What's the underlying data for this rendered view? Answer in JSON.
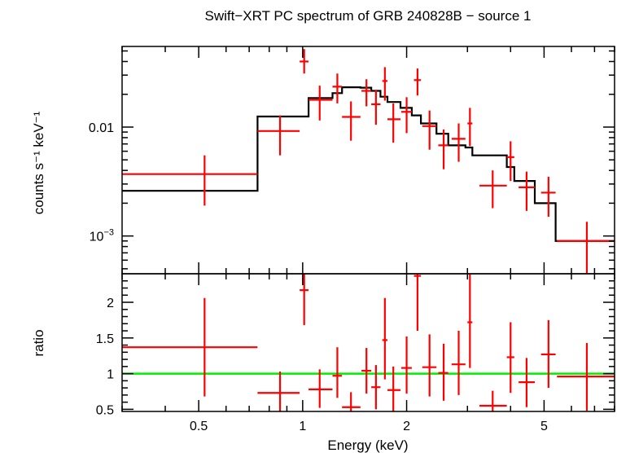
{
  "chart_data": {
    "type": "scatter",
    "title": "Swift−XRT PC spectrum of GRB 240828B − source 1",
    "xlabel": "Energy (keV)",
    "xscale": "log",
    "xlim": [
      0.3,
      8
    ],
    "x_ticks": [
      {
        "v": 0.5,
        "label": "0.5"
      },
      {
        "v": 1,
        "label": "1"
      },
      {
        "v": 2,
        "label": "2"
      },
      {
        "v": 5,
        "label": "5"
      }
    ],
    "top_panel": {
      "ylabel": "counts s⁻¹ keV⁻¹",
      "yscale": "log",
      "ylim": [
        0.00045,
        0.055
      ],
      "y_ticks": [
        {
          "v": 0.01,
          "label": "0.01",
          "sup": ""
        },
        {
          "v": 0.001,
          "label": "10",
          "sup": "−3"
        }
      ],
      "data": [
        {
          "x": 0.52,
          "xlo": 0.3,
          "xhi": 0.74,
          "y": 0.0037,
          "ylo": 0.0019,
          "yhi": 0.0055
        },
        {
          "x": 0.86,
          "xlo": 0.74,
          "xhi": 0.98,
          "y": 0.0092,
          "ylo": 0.0055,
          "yhi": 0.0128
        },
        {
          "x": 1.01,
          "xlo": 0.98,
          "xhi": 1.04,
          "y": 0.04,
          "ylo": 0.031,
          "yhi": 0.052
        },
        {
          "x": 1.12,
          "xlo": 1.04,
          "xhi": 1.22,
          "y": 0.0178,
          "ylo": 0.0115,
          "yhi": 0.024
        },
        {
          "x": 1.26,
          "xlo": 1.22,
          "xhi": 1.3,
          "y": 0.0235,
          "ylo": 0.0165,
          "yhi": 0.031
        },
        {
          "x": 1.38,
          "xlo": 1.3,
          "xhi": 1.47,
          "y": 0.0124,
          "ylo": 0.0075,
          "yhi": 0.0172
        },
        {
          "x": 1.53,
          "xlo": 1.48,
          "xhi": 1.58,
          "y": 0.0215,
          "ylo": 0.0155,
          "yhi": 0.0275
        },
        {
          "x": 1.63,
          "xlo": 1.58,
          "xhi": 1.68,
          "y": 0.0162,
          "ylo": 0.0105,
          "yhi": 0.022
        },
        {
          "x": 1.73,
          "xlo": 1.7,
          "xhi": 1.76,
          "y": 0.0265,
          "ylo": 0.0175,
          "yhi": 0.0355
        },
        {
          "x": 1.83,
          "xlo": 1.76,
          "xhi": 1.92,
          "y": 0.0118,
          "ylo": 0.0072,
          "yhi": 0.0165
        },
        {
          "x": 2.0,
          "xlo": 1.93,
          "xhi": 2.07,
          "y": 0.0138,
          "ylo": 0.0088,
          "yhi": 0.0188
        },
        {
          "x": 2.15,
          "xlo": 2.1,
          "xhi": 2.2,
          "y": 0.027,
          "ylo": 0.0195,
          "yhi": 0.0345
        },
        {
          "x": 2.33,
          "xlo": 2.22,
          "xhi": 2.44,
          "y": 0.0102,
          "ylo": 0.0062,
          "yhi": 0.0142
        },
        {
          "x": 2.56,
          "xlo": 2.47,
          "xhi": 2.64,
          "y": 0.0068,
          "ylo": 0.0041,
          "yhi": 0.0095
        },
        {
          "x": 2.83,
          "xlo": 2.7,
          "xhi": 2.96,
          "y": 0.0078,
          "ylo": 0.0048,
          "yhi": 0.0108
        },
        {
          "x": 3.05,
          "xlo": 3.0,
          "xhi": 3.1,
          "y": 0.0108,
          "ylo": 0.0067,
          "yhi": 0.015
        },
        {
          "x": 3.55,
          "xlo": 3.25,
          "xhi": 3.9,
          "y": 0.0029,
          "ylo": 0.0018,
          "yhi": 0.004
        },
        {
          "x": 4.0,
          "xlo": 3.9,
          "xhi": 4.1,
          "y": 0.0053,
          "ylo": 0.0032,
          "yhi": 0.0074
        },
        {
          "x": 4.45,
          "xlo": 4.22,
          "xhi": 4.7,
          "y": 0.0028,
          "ylo": 0.0017,
          "yhi": 0.0039
        },
        {
          "x": 5.15,
          "xlo": 4.9,
          "xhi": 5.4,
          "y": 0.0025,
          "ylo": 0.0015,
          "yhi": 0.0035
        },
        {
          "x": 6.65,
          "xlo": 5.45,
          "xhi": 8.0,
          "y": 0.0009,
          "ylo": 0.00045,
          "yhi": 0.00135
        }
      ],
      "model_step": {
        "edges": [
          0.3,
          0.74,
          0.98,
          1.04,
          1.22,
          1.3,
          1.47,
          1.58,
          1.68,
          1.76,
          1.92,
          2.07,
          2.2,
          2.44,
          2.64,
          2.96,
          3.1,
          3.9,
          4.1,
          4.7,
          5.4,
          8.0
        ],
        "values": [
          0.0026,
          0.0125,
          0.0125,
          0.0185,
          0.0205,
          0.0232,
          0.023,
          0.0215,
          0.019,
          0.017,
          0.015,
          0.0128,
          0.0108,
          0.0087,
          0.0068,
          0.0065,
          0.0055,
          0.0043,
          0.0032,
          0.002,
          0.0009
        ]
      }
    },
    "bottom_panel": {
      "ylabel": "ratio",
      "yscale": "linear",
      "ylim": [
        0.47,
        2.4
      ],
      "y_ticks": [
        {
          "v": 0.5,
          "label": "0.5"
        },
        {
          "v": 1,
          "label": "1"
        },
        {
          "v": 1.5,
          "label": "1.5"
        },
        {
          "v": 2,
          "label": "2"
        }
      ],
      "reference_line": 1,
      "reference_color": "#00ee00",
      "data": [
        {
          "x": 0.52,
          "xlo": 0.3,
          "xhi": 0.74,
          "y": 1.37,
          "ylo": 0.68,
          "yhi": 2.06
        },
        {
          "x": 0.86,
          "xlo": 0.74,
          "xhi": 0.98,
          "y": 0.73,
          "ylo": 0.44,
          "yhi": 1.03
        },
        {
          "x": 1.01,
          "xlo": 0.98,
          "xhi": 1.04,
          "y": 2.17,
          "ylo": 1.68,
          "yhi": 2.6
        },
        {
          "x": 1.12,
          "xlo": 1.04,
          "xhi": 1.22,
          "y": 0.78,
          "ylo": 0.52,
          "yhi": 1.06
        },
        {
          "x": 1.26,
          "xlo": 1.22,
          "xhi": 1.3,
          "y": 0.97,
          "ylo": 0.66,
          "yhi": 1.37
        },
        {
          "x": 1.38,
          "xlo": 1.3,
          "xhi": 1.47,
          "y": 0.53,
          "ylo": 0.32,
          "yhi": 0.74
        },
        {
          "x": 1.53,
          "xlo": 1.48,
          "xhi": 1.58,
          "y": 1.04,
          "ylo": 0.72,
          "yhi": 1.36
        },
        {
          "x": 1.63,
          "xlo": 1.58,
          "xhi": 1.68,
          "y": 0.81,
          "ylo": 0.5,
          "yhi": 1.12
        },
        {
          "x": 1.73,
          "xlo": 1.7,
          "xhi": 1.76,
          "y": 1.47,
          "ylo": 0.92,
          "yhi": 2.06
        },
        {
          "x": 1.83,
          "xlo": 1.76,
          "xhi": 1.92,
          "y": 0.77,
          "ylo": 0.45,
          "yhi": 1.1
        },
        {
          "x": 2.0,
          "xlo": 1.93,
          "xhi": 2.07,
          "y": 1.08,
          "ylo": 0.72,
          "yhi": 1.52
        },
        {
          "x": 2.15,
          "xlo": 2.1,
          "xhi": 2.2,
          "y": 2.37,
          "ylo": 1.6,
          "yhi": 3.0
        },
        {
          "x": 2.33,
          "xlo": 2.22,
          "xhi": 2.44,
          "y": 1.09,
          "ylo": 0.68,
          "yhi": 1.55
        },
        {
          "x": 2.56,
          "xlo": 2.47,
          "xhi": 2.64,
          "y": 1.01,
          "ylo": 0.62,
          "yhi": 1.42
        },
        {
          "x": 2.83,
          "xlo": 2.7,
          "xhi": 2.96,
          "y": 1.13,
          "ylo": 0.7,
          "yhi": 1.6
        },
        {
          "x": 3.05,
          "xlo": 3.0,
          "xhi": 3.1,
          "y": 1.72,
          "ylo": 1.08,
          "yhi": 2.4
        },
        {
          "x": 3.55,
          "xlo": 3.25,
          "xhi": 3.9,
          "y": 0.55,
          "ylo": 0.35,
          "yhi": 0.76
        },
        {
          "x": 4.0,
          "xlo": 3.9,
          "xhi": 4.1,
          "y": 1.23,
          "ylo": 0.73,
          "yhi": 1.72
        },
        {
          "x": 4.45,
          "xlo": 4.22,
          "xhi": 4.7,
          "y": 0.88,
          "ylo": 0.53,
          "yhi": 1.22
        },
        {
          "x": 5.15,
          "xlo": 4.9,
          "xhi": 5.4,
          "y": 1.27,
          "ylo": 0.8,
          "yhi": 1.75
        },
        {
          "x": 6.65,
          "xlo": 5.45,
          "xhi": 8.0,
          "y": 0.96,
          "ylo": 0.48,
          "yhi": 1.43
        }
      ]
    },
    "colors": {
      "data": "#ff0000",
      "model": "#000000",
      "reference": "#00ee00",
      "axes": "#000000"
    }
  }
}
